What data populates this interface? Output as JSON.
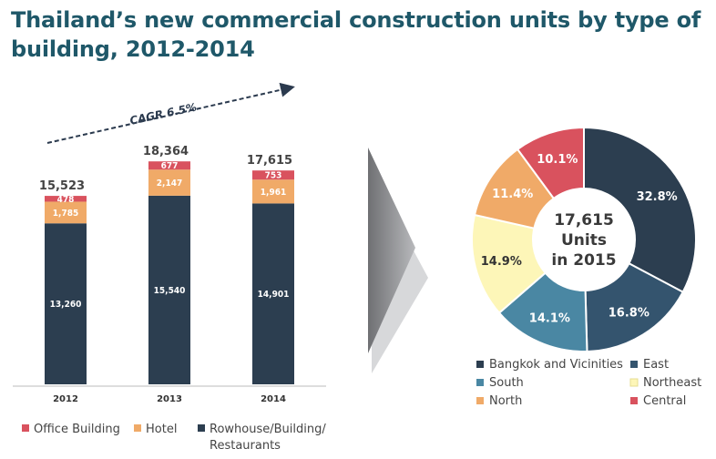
{
  "title": "Thailand’s new commercial construction units by type of building, 2012-2014",
  "colors": {
    "office": "#d9525e",
    "hotel": "#f0aa68",
    "rowhouse": "#2c3e50",
    "bangkok": "#2c3e50",
    "east": "#34546e",
    "south": "#4a87a3",
    "northeast": "#fdf6b8",
    "north": "#f0aa68",
    "central": "#d9525e"
  },
  "chart_data": [
    {
      "type": "bar",
      "stacked": true,
      "categories": [
        "2012",
        "2013",
        "2014"
      ],
      "series": [
        {
          "name": "Rowhouse/Building/\nRestaurants",
          "key": "rowhouse",
          "values": [
            13260,
            15540,
            14901
          ],
          "labels": [
            "13,260",
            "15,540",
            "14,901"
          ]
        },
        {
          "name": "Hotel",
          "key": "hotel",
          "values": [
            1785,
            2147,
            1961
          ],
          "labels": [
            "1,785",
            "2,147",
            "1,961"
          ]
        },
        {
          "name": "Office Building",
          "key": "office",
          "values": [
            478,
            677,
            753
          ],
          "labels": [
            "478",
            "677",
            "753"
          ]
        }
      ],
      "totals": [
        "15,523",
        "18,364",
        "17,615"
      ],
      "annotation": "CAGR 6.5%",
      "legend": [
        "Office Building",
        "Hotel",
        "Rowhouse/Building/",
        "Restaurants"
      ]
    },
    {
      "type": "pie",
      "donut": true,
      "center_text": [
        "17,615",
        "Units",
        "in 2015"
      ],
      "slices": [
        {
          "name": "Bangkok and Vicinities",
          "key": "bangkok",
          "value": 32.8,
          "label": "32.8%"
        },
        {
          "name": "East",
          "key": "east",
          "value": 16.8,
          "label": "16.8%"
        },
        {
          "name": "South",
          "key": "south",
          "value": 14.1,
          "label": "14.1%"
        },
        {
          "name": "Northeast",
          "key": "northeast",
          "value": 14.9,
          "label": "14.9%"
        },
        {
          "name": "North",
          "key": "north",
          "value": 11.4,
          "label": "11.4%"
        },
        {
          "name": "Central",
          "key": "central",
          "value": 10.1,
          "label": "10.1%"
        }
      ],
      "legend": [
        "Bangkok and Vicinities",
        "East",
        "South",
        "Northeast",
        "North",
        "Central"
      ]
    }
  ]
}
